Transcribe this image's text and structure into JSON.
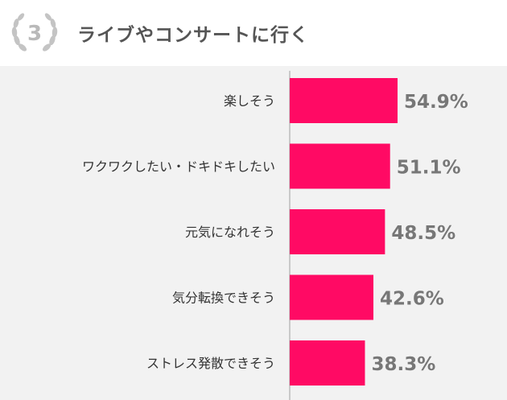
{
  "header": {
    "rank": "3",
    "title": "ライブやコンサートに行く"
  },
  "chart_data": {
    "type": "bar",
    "orientation": "horizontal",
    "title": "ライブやコンサートに行く",
    "categories": [
      "楽しそう",
      "ワクワクしたい・ドキドキしたい",
      "元気になれそう",
      "気分転換できそう",
      "ストレス発散できそう"
    ],
    "values": [
      54.9,
      51.1,
      48.5,
      42.6,
      38.3
    ],
    "value_labels": [
      "54.9%",
      "51.1%",
      "48.5%",
      "42.6%",
      "38.3%"
    ],
    "unit": "%",
    "xlim": [
      0,
      100
    ],
    "grid": false,
    "legend": "none",
    "bar_color": "#ff0a64"
  },
  "colors": {
    "bar": "#ff0a64",
    "axis": "#bbbbbb",
    "label": "#333333",
    "value": "#777777",
    "background": "#f2f2f2",
    "badge": "#b9b9b9"
  }
}
